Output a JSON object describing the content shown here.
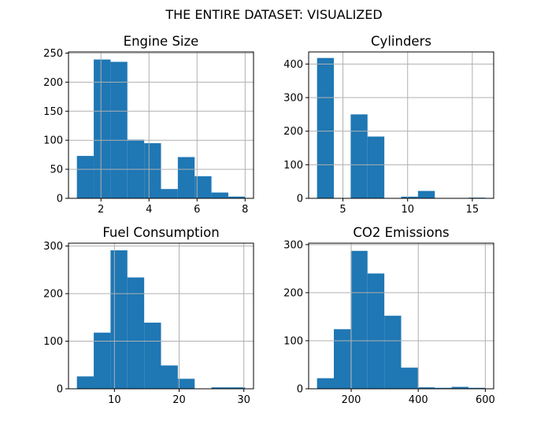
{
  "suptitle": "THE ENTIRE DATASET: VISUALIZED",
  "colors": {
    "bar": "#1f77b4"
  },
  "chart_data": [
    {
      "type": "bar",
      "title": "Engine Size",
      "grid": true,
      "xlim": [
        0.65,
        8.35
      ],
      "ylim": [
        0,
        252
      ],
      "xticks": [
        2,
        4,
        6,
        8
      ],
      "xtick_labels": [
        "2",
        "4",
        "6",
        "8"
      ],
      "yticks": [
        0,
        50,
        100,
        150,
        200,
        250
      ],
      "ytick_labels": [
        "0",
        "50",
        "100",
        "150",
        "200",
        "250"
      ],
      "bin_edges": [
        1.0,
        1.7,
        2.4,
        3.1,
        3.8,
        4.5,
        5.2,
        5.9,
        6.6,
        7.3,
        8.0
      ],
      "values": [
        73,
        239,
        235,
        101,
        95,
        16,
        71,
        38,
        10,
        3
      ]
    },
    {
      "type": "bar",
      "title": "Cylinders",
      "grid": true,
      "xlim": [
        2.35,
        16.65
      ],
      "ylim": [
        0,
        436
      ],
      "xticks": [
        5,
        10,
        15
      ],
      "xtick_labels": [
        "5",
        "10",
        "15"
      ],
      "yticks": [
        0,
        100,
        200,
        300,
        400
      ],
      "ytick_labels": [
        "0",
        "100",
        "200",
        "300",
        "400"
      ],
      "bin_edges": [
        3.0,
        4.3,
        5.6,
        6.9,
        8.2,
        9.5,
        10.8,
        12.1,
        13.4,
        14.7,
        16.0
      ],
      "values": [
        418,
        0,
        250,
        184,
        0,
        5,
        22,
        0,
        0,
        2
      ]
    },
    {
      "type": "bar",
      "title": "Fuel Consumption",
      "grid": true,
      "xlim": [
        2.9,
        31.5
      ],
      "ylim": [
        0,
        306
      ],
      "xticks": [
        10,
        20,
        30
      ],
      "xtick_labels": [
        "10",
        "20",
        "30"
      ],
      "yticks": [
        0,
        100,
        200,
        300
      ],
      "ytick_labels": [
        "0",
        "100",
        "200",
        "300"
      ],
      "bin_edges": [
        4.2,
        6.8,
        9.4,
        12.0,
        14.6,
        17.2,
        19.8,
        22.4,
        25.0,
        27.6,
        30.2
      ],
      "values": [
        26,
        118,
        291,
        234,
        139,
        49,
        21,
        0,
        3,
        3
      ]
    },
    {
      "type": "bar",
      "title": "CO2 Emissions",
      "grid": true,
      "xlim": [
        73,
        625
      ],
      "ylim": [
        0,
        303
      ],
      "xticks": [
        200,
        400,
        600
      ],
      "xtick_labels": [
        "200",
        "400",
        "600"
      ],
      "yticks": [
        0,
        100,
        200,
        300
      ],
      "ytick_labels": [
        "0",
        "100",
        "200",
        "300"
      ],
      "bin_edges": [
        98,
        148.2,
        198.4,
        248.6,
        298.8,
        349,
        399.2,
        449.4,
        499.6,
        549.8,
        600
      ],
      "values": [
        22,
        124,
        287,
        240,
        152,
        44,
        3,
        2,
        4,
        2
      ]
    }
  ]
}
